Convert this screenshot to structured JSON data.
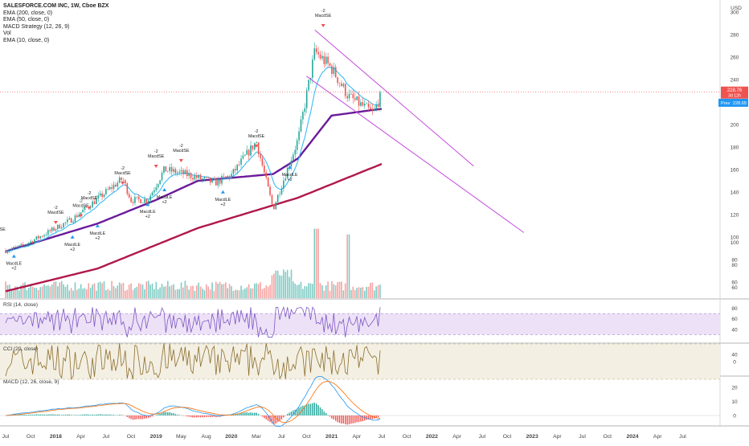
{
  "legend": {
    "title": "SALESFORCE.COM INC, 1W, Cboe BZX",
    "items": [
      "EMA (200, close, 0)",
      "EMA (50, close, 0)",
      "MACD Strategy (12, 26, 9)",
      "Vol",
      "EMA (10, close, 0)"
    ]
  },
  "currency": "USD",
  "price_badges": {
    "last": "228.76",
    "change": "3d 12h",
    "prev_label": "Prev",
    "prev": "228.65"
  },
  "panes": {
    "rsi_label": "RSI (14, close)",
    "cci_label": "CCI (20, close)",
    "macd_label": "MACD (12, 26, close, 9)"
  },
  "colors": {
    "up": "#26a69a",
    "down": "#ef5350",
    "ema200": "#b0184a",
    "ema50": "#6a1b9a",
    "ema10": "#29b6f6",
    "channel": "#c34bdd",
    "rsi": "#7e57c2",
    "cci": "#8d6e2f",
    "macd_line": "#2196f3",
    "signal_line": "#ff6d00",
    "last_badge": "#ef5350",
    "prev_badge": "#2196f3"
  },
  "chart_data": {
    "type": "candlestick",
    "y_axis": {
      "ticks": [
        60,
        80,
        100,
        120,
        140,
        160,
        180,
        200,
        220,
        240,
        260,
        280,
        300
      ],
      "range": [
        45,
        305
      ]
    },
    "x_axis": {
      "ticks": [
        "Jul",
        "Oct",
        "2018",
        "Apr",
        "Jul",
        "Oct",
        "2019",
        "May",
        "Aug",
        "2020",
        "Mar",
        "Jul",
        "Oct",
        "2021",
        "Apr",
        "Jul",
        "Oct",
        "2022",
        "Apr",
        "Jul",
        "Oct",
        "2023",
        "Apr",
        "Jul",
        "Oct",
        "2024",
        "Apr",
        "Jul"
      ]
    },
    "price_path": [
      [
        "2017-06",
        86
      ],
      [
        "2017-09",
        92
      ],
      [
        "2017-12",
        104
      ],
      [
        "2018-03",
        116
      ],
      [
        "2018-06",
        134
      ],
      [
        "2018-09",
        152
      ],
      [
        "2018-10",
        133
      ],
      [
        "2018-12",
        133
      ],
      [
        "2019-02",
        160
      ],
      [
        "2019-05",
        155
      ],
      [
        "2019-08",
        148
      ],
      [
        "2019-10",
        155
      ],
      [
        "2020-01",
        185
      ],
      [
        "2020-03",
        125
      ],
      [
        "2020-06",
        187
      ],
      [
        "2020-08",
        265
      ],
      [
        "2020-10",
        250
      ],
      [
        "2020-12",
        225
      ],
      [
        "2021-02",
        215
      ],
      [
        "2021-03",
        210
      ],
      [
        "2021-04",
        228.76
      ]
    ],
    "ema200_path": [
      [
        "2017-06",
        50
      ],
      [
        "2018-06",
        72
      ],
      [
        "2019-06",
        108
      ],
      [
        "2020-06",
        135
      ],
      [
        "2021-04",
        165
      ]
    ],
    "ema50_path": [
      [
        "2017-06",
        85
      ],
      [
        "2018-06",
        112
      ],
      [
        "2019-01",
        133
      ],
      [
        "2019-06",
        150
      ],
      [
        "2020-03",
        156
      ],
      [
        "2020-06",
        170
      ],
      [
        "2020-10",
        208
      ],
      [
        "2021-04",
        214
      ]
    ],
    "channel": {
      "upper": [
        [
          "2020-08",
          284
        ],
        [
          "2022-03",
          163
        ]
      ],
      "lower": [
        [
          "2020-07",
          243
        ],
        [
          "2022-09",
          104
        ]
      ]
    },
    "signals": [
      {
        "label": "MacdSE",
        "count": "-2",
        "date": "2017-06",
        "price": 100,
        "side": "sell"
      },
      {
        "label": "MacdLE",
        "count": "+2",
        "date": "2017-08",
        "price": 81,
        "side": "buy"
      },
      {
        "label": "MacdSE",
        "count": "-2",
        "date": "2018-01",
        "price": 115,
        "side": "sell"
      },
      {
        "label": "MacdLE",
        "count": "+2",
        "date": "2018-03",
        "price": 98,
        "side": "buy"
      },
      {
        "label": "MacdSE",
        "count": "-2",
        "date": "2018-04",
        "price": 121,
        "side": "sell"
      },
      {
        "label": "MacdSE",
        "count": "-2",
        "date": "2018-05",
        "price": 128,
        "side": "sell"
      },
      {
        "label": "MacdLE",
        "count": "+2",
        "date": "2018-06",
        "price": 108,
        "side": "buy"
      },
      {
        "label": "MacdSE",
        "count": "-2",
        "date": "2018-09",
        "price": 150,
        "side": "sell"
      },
      {
        "label": "MacdLE",
        "count": "+2",
        "date": "2018-12",
        "price": 127,
        "side": "buy"
      },
      {
        "label": "MacdSE",
        "count": "-2",
        "date": "2019-01",
        "price": 165,
        "side": "sell"
      },
      {
        "label": "MacdLE",
        "count": "+2",
        "date": "2019-02",
        "price": 140,
        "side": "buy"
      },
      {
        "label": "MacdSE",
        "count": "-2",
        "date": "2019-04",
        "price": 170,
        "side": "sell"
      },
      {
        "label": "MacdLE",
        "count": "+2",
        "date": "2019-09",
        "price": 138,
        "side": "buy"
      },
      {
        "label": "MacdSE",
        "count": "-2",
        "date": "2020-01",
        "price": 183,
        "side": "sell"
      },
      {
        "label": "MacdLE",
        "count": "+2",
        "date": "2020-05",
        "price": 160,
        "side": "buy"
      },
      {
        "label": "MacdSE",
        "count": "-2",
        "date": "2020-09",
        "price": 290,
        "side": "sell"
      }
    ],
    "volume_axis": {
      "ticks": [
        60,
        80,
        100
      ]
    },
    "rsi": {
      "ticks": [
        40,
        60,
        80
      ],
      "band": [
        30,
        70
      ],
      "last": 52
    },
    "cci": {
      "ticks": [
        0,
        40
      ]
    },
    "macd": {
      "ticks": [
        0,
        10,
        20
      ]
    }
  }
}
